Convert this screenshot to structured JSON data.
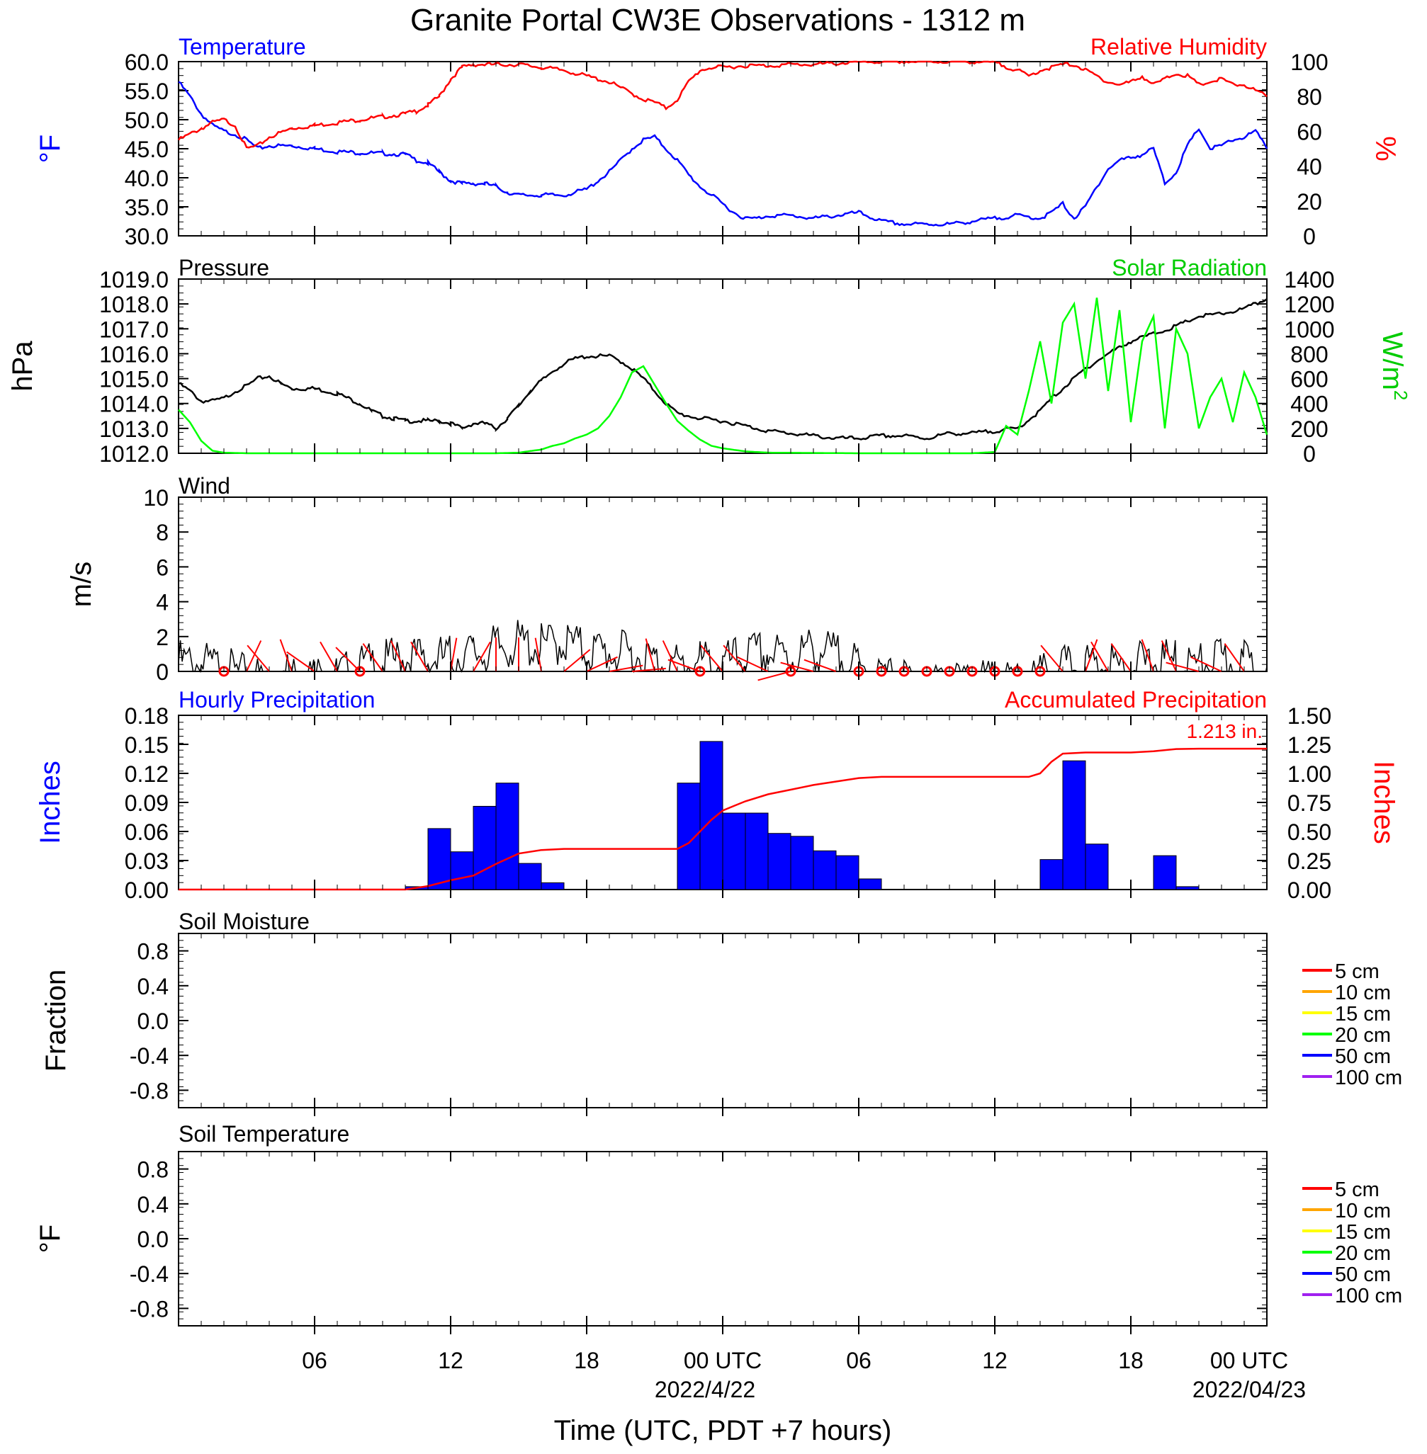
{
  "figure": {
    "title": "Granite Portal CW3E Observations - 1312 m",
    "xlabel": "Time (UTC, PDT +7 hours)",
    "xticks": [
      "06",
      "12",
      "18",
      "00 UTC",
      "06",
      "12",
      "18",
      "00 UTC"
    ],
    "date_labels": [
      "2022/4/22",
      "2022/04/23"
    ],
    "colors": {
      "temperature": "#0000ff",
      "humidity": "#ff0000",
      "pressure": "#000000",
      "solar": "#00ff00",
      "wind": "#000000",
      "barb": "#ff0000",
      "hourly": "#0000ff",
      "accum": "#ff0000"
    }
  },
  "chart_data": [
    {
      "id": "temp_rh",
      "type": "line",
      "left_title": "Temperature",
      "right_title": "Relative Humidity",
      "left_axis": {
        "label": "°F",
        "ticks": [
          "30.0",
          "35.0",
          "40.0",
          "45.0",
          "50.0",
          "55.0",
          "60.0"
        ],
        "range": [
          30,
          60
        ]
      },
      "right_axis": {
        "label": "%",
        "ticks": [
          "0",
          "20",
          "40",
          "60",
          "80",
          "100"
        ],
        "range": [
          0,
          100
        ]
      },
      "x_range_hours": [
        0,
        48
      ],
      "series": [
        {
          "name": "Temperature",
          "axis": "left",
          "x": [
            0,
            0.5,
            1,
            1.5,
            2,
            2.5,
            3,
            3.5,
            4,
            5,
            6,
            7,
            8,
            9,
            10,
            10.5,
            11,
            11.5,
            12,
            12.5,
            13,
            13.5,
            14,
            14.5,
            15,
            16,
            17,
            18,
            18.5,
            19,
            19.5,
            20,
            20.5,
            21,
            21.5,
            22,
            22.5,
            23,
            23.5,
            24,
            24.5,
            25,
            25.5,
            26,
            27,
            28,
            29,
            30,
            31,
            32,
            33,
            34,
            35,
            36,
            37,
            38,
            38.5,
            39,
            39.5,
            40,
            40.5,
            41,
            41.5,
            42,
            42.5,
            43,
            43.5,
            44,
            44.5,
            45,
            45.5,
            46,
            46.5,
            47,
            47.5,
            48
          ],
          "y": [
            56.5,
            54.0,
            51.0,
            49.0,
            48.0,
            47.5,
            46.5,
            45.0,
            45.5,
            45.5,
            45.0,
            44.5,
            44.3,
            44.2,
            44.0,
            43.0,
            42.5,
            41.0,
            39.5,
            39.0,
            39.0,
            39.0,
            38.5,
            37.5,
            37.0,
            37.0,
            37.0,
            38.0,
            39.5,
            41.0,
            43.0,
            45.0,
            46.5,
            47.0,
            45.0,
            43.0,
            40.5,
            38.5,
            37.0,
            35.5,
            34.0,
            33.0,
            33.0,
            33.5,
            33.5,
            33.0,
            33.5,
            34.0,
            32.5,
            32.0,
            32.0,
            32.0,
            32.5,
            33.0,
            33.5,
            33.0,
            34.0,
            35.5,
            33.0,
            35.0,
            38.5,
            41.5,
            43.0,
            43.5,
            44.0,
            45.0,
            39.0,
            41.0,
            45.5,
            48.5,
            45.0,
            45.5,
            46.5,
            47.0,
            48.0,
            45.0
          ]
        },
        {
          "name": "Relative Humidity",
          "axis": "left",
          "x": [
            0,
            0.5,
            1,
            1.5,
            2,
            2.5,
            3,
            3.5,
            4,
            5,
            6,
            7,
            8,
            9,
            10,
            10.5,
            11,
            11.5,
            12,
            12.5,
            13,
            14,
            15,
            16,
            17,
            17.5,
            18,
            19,
            19.5,
            20,
            20.5,
            21,
            21.5,
            22,
            22.5,
            23,
            23.5,
            24,
            25,
            26,
            27,
            28,
            29,
            30,
            31,
            32,
            33,
            34,
            35,
            36,
            37,
            37.5,
            38,
            38.5,
            39,
            39.5,
            40,
            40.5,
            41,
            41.5,
            42,
            42.5,
            43,
            43.5,
            44,
            44.5,
            45,
            45.5,
            46,
            46.5,
            47,
            47.5,
            48
          ],
          "y": [
            46.5,
            47.5,
            48.5,
            49.5,
            50.0,
            49.0,
            45.0,
            45.5,
            47.0,
            48.5,
            49.0,
            49.5,
            50.0,
            50.5,
            51.0,
            51.5,
            52.5,
            54.0,
            57.0,
            59.0,
            59.5,
            59.5,
            59.5,
            59.0,
            58.5,
            58.0,
            57.5,
            56.5,
            55.5,
            54.5,
            53.5,
            53.0,
            52.0,
            53.5,
            56.5,
            58.5,
            59.0,
            59.0,
            59.3,
            59.3,
            59.5,
            59.5,
            59.7,
            59.9,
            60.0,
            60.0,
            60.0,
            60.0,
            60.0,
            59.8,
            58.5,
            57.5,
            58.5,
            59.0,
            59.5,
            59.5,
            58.5,
            57.5,
            56.5,
            56.0,
            56.5,
            57.5,
            56.0,
            57.0,
            58.0,
            57.5,
            56.0,
            56.5,
            57.0,
            56.0,
            56.0,
            55.0,
            54.0
          ]
        }
      ]
    },
    {
      "id": "pressure_solar",
      "type": "line",
      "left_title": "Pressure",
      "right_title": "Solar Radiation",
      "left_axis": {
        "label": "hPa",
        "ticks": [
          "1012.0",
          "1013.0",
          "1014.0",
          "1015.0",
          "1016.0",
          "1017.0",
          "1018.0",
          "1019.0"
        ],
        "range": [
          1012,
          1019
        ]
      },
      "right_axis": {
        "label": "W/m",
        "label_sup": "2",
        "ticks": [
          "0",
          "200",
          "400",
          "600",
          "800",
          "1000",
          "1200",
          "1400"
        ],
        "range": [
          0,
          1400
        ]
      },
      "series": [
        {
          "name": "Pressure",
          "axis": "left",
          "x": [
            0,
            0.5,
            1,
            1.5,
            2,
            2.5,
            3,
            3.5,
            4,
            4.5,
            5,
            6,
            7,
            8,
            8.5,
            9,
            9.5,
            10,
            10.5,
            11,
            11.5,
            12,
            12.5,
            13,
            13.5,
            14,
            14.5,
            15,
            15.5,
            16,
            16.5,
            17,
            17.5,
            18,
            18.5,
            19,
            19.5,
            20,
            20.5,
            21,
            21.5,
            22,
            23,
            24,
            25,
            26,
            27,
            28,
            29,
            30,
            31,
            32,
            33,
            34,
            35,
            36,
            37,
            38,
            38.5,
            39,
            39.5,
            40,
            40.5,
            41,
            42,
            43,
            44,
            45,
            46,
            47,
            47.5,
            48
          ],
          "y": [
            1014.8,
            1014.5,
            1014.1,
            1014.1,
            1014.2,
            1014.5,
            1014.7,
            1015.0,
            1015.1,
            1014.8,
            1014.6,
            1014.6,
            1014.4,
            1014.0,
            1013.7,
            1013.5,
            1013.4,
            1013.3,
            1013.3,
            1013.3,
            1013.3,
            1013.2,
            1013.0,
            1013.2,
            1013.2,
            1013.0,
            1013.4,
            1013.9,
            1014.5,
            1014.9,
            1015.3,
            1015.6,
            1015.8,
            1015.9,
            1015.9,
            1015.9,
            1015.7,
            1015.4,
            1015.0,
            1014.5,
            1014.0,
            1013.6,
            1013.4,
            1013.3,
            1013.1,
            1012.9,
            1012.8,
            1012.7,
            1012.6,
            1012.6,
            1012.7,
            1012.7,
            1012.6,
            1012.8,
            1012.8,
            1012.9,
            1013.0,
            1013.7,
            1014.2,
            1014.6,
            1015.0,
            1015.4,
            1015.7,
            1016.0,
            1016.5,
            1016.8,
            1017.1,
            1017.5,
            1017.6,
            1017.8,
            1018.0,
            1018.2
          ]
        },
        {
          "name": "Solar Radiation",
          "axis": "right",
          "x": [
            0,
            0.5,
            1,
            1.5,
            2,
            3,
            4,
            8,
            12,
            14,
            15,
            16,
            16.5,
            17,
            17.5,
            18,
            18.5,
            19,
            19.5,
            20,
            20.5,
            21,
            21.5,
            22,
            22.5,
            23,
            23.5,
            24,
            25,
            26,
            30,
            35,
            36,
            36.5,
            37,
            37.5,
            38,
            38.5,
            39,
            39.5,
            40,
            40.5,
            41,
            41.5,
            42,
            42.5,
            43,
            43.5,
            44,
            44.5,
            45,
            45.5,
            46,
            46.5,
            47,
            47.5,
            48
          ],
          "y": [
            350,
            250,
            100,
            20,
            5,
            0,
            0,
            0,
            0,
            0,
            5,
            30,
            60,
            80,
            120,
            150,
            200,
            300,
            450,
            650,
            700,
            550,
            400,
            260,
            180,
            110,
            60,
            40,
            15,
            5,
            0,
            0,
            10,
            220,
            150,
            500,
            900,
            400,
            1050,
            1200,
            600,
            1250,
            500,
            1150,
            250,
            900,
            1100,
            200,
            1000,
            800,
            200,
            450,
            600,
            250,
            650,
            450,
            150
          ]
        }
      ]
    },
    {
      "id": "wind",
      "type": "line",
      "left_title": "Wind",
      "left_axis": {
        "label": "m/s",
        "ticks": [
          "0",
          "2",
          "4",
          "6",
          "8",
          "10"
        ],
        "range": [
          0,
          10
        ]
      },
      "series": [
        {
          "name": "Wind",
          "x": [
            0,
            1,
            2,
            3,
            4,
            5,
            6,
            7,
            8,
            9,
            10,
            11,
            12,
            13,
            14,
            15,
            16,
            17,
            18,
            19,
            20,
            21,
            22,
            23,
            24,
            25,
            26,
            27,
            28,
            29,
            30,
            31,
            32,
            33,
            34,
            35,
            36,
            37,
            38,
            39,
            40,
            41,
            42,
            43,
            44,
            45,
            46,
            47,
            48
          ],
          "y": [
            1.2,
            1.1,
            0.8,
            0.3,
            0.3,
            0.6,
            0.4,
            0.3,
            0.9,
            1.1,
            1.5,
            1.3,
            1.5,
            1.7,
            2.0,
            2.3,
            2.1,
            2.4,
            1.9,
            1.8,
            1.6,
            1.3,
            1.0,
            1.2,
            1.0,
            1.6,
            1.7,
            1.5,
            2.0,
            1.6,
            0.8,
            0.3,
            0.1,
            0.0,
            0.0,
            0.0,
            0.0,
            0.0,
            0.3,
            0.8,
            1.0,
            0.9,
            1.0,
            1.1,
            1.2,
            1.0,
            1.3,
            1.2,
            1.0
          ]
        }
      ],
      "calm_hours": [
        2,
        8,
        23,
        27,
        30,
        31,
        32,
        33,
        34,
        35,
        36,
        37,
        38
      ],
      "barb_hours": [
        3,
        4,
        5,
        6,
        7,
        8,
        9,
        10,
        11,
        12,
        13,
        14,
        15,
        16,
        17,
        18,
        19,
        20,
        21,
        22,
        23,
        24,
        25,
        26,
        27,
        28,
        29,
        39,
        40,
        41,
        42,
        43,
        44,
        45,
        46,
        47
      ],
      "barb_angles": [
        155,
        220,
        200,
        235,
        210,
        225,
        215,
        205,
        210,
        170,
        150,
        180,
        180,
        190,
        130,
        115,
        100,
        95,
        195,
        205,
        250,
        220,
        220,
        245,
        285,
        255,
        250,
        220,
        160,
        210,
        215,
        200,
        205,
        255,
        245,
        215
      ]
    },
    {
      "id": "precip",
      "type": "bar",
      "left_title": "Hourly Precipitation",
      "right_title": "Accumulated Precipitation",
      "total_label": "1.213 in.",
      "left_axis": {
        "label": "Inches",
        "ticks": [
          "0.00",
          "0.03",
          "0.06",
          "0.09",
          "0.12",
          "0.15",
          "0.18"
        ],
        "range": [
          0,
          0.18
        ]
      },
      "right_axis": {
        "label": "Inches",
        "ticks": [
          "0.00",
          "0.25",
          "0.50",
          "0.75",
          "1.00",
          "1.25",
          "1.50"
        ],
        "range": [
          0,
          1.5
        ]
      },
      "hourly": [
        0,
        0,
        0,
        0,
        0,
        0,
        0,
        0,
        0,
        0,
        0.003,
        0.063,
        0.039,
        0.086,
        0.11,
        0.027,
        0.007,
        0,
        0,
        0,
        0,
        0,
        0.11,
        0.153,
        0.079,
        0.079,
        0.058,
        0.055,
        0.04,
        0.035,
        0.011,
        0,
        0,
        0,
        0,
        0,
        0,
        0,
        0.031,
        0.133,
        0.047,
        0,
        0,
        0.035,
        0.003,
        0,
        0,
        0
      ],
      "accum": {
        "x": [
          0,
          10,
          11,
          12,
          13,
          14,
          15,
          16,
          17,
          18,
          20,
          22,
          22.5,
          23,
          23.5,
          24,
          24.5,
          25,
          26,
          27,
          28,
          29,
          30,
          31,
          35,
          37.5,
          38,
          38.5,
          39,
          40,
          42,
          43,
          44,
          45,
          46,
          47,
          48
        ],
        "y": [
          0,
          0,
          0.03,
          0.08,
          0.12,
          0.22,
          0.31,
          0.34,
          0.35,
          0.35,
          0.35,
          0.35,
          0.4,
          0.5,
          0.6,
          0.68,
          0.72,
          0.76,
          0.82,
          0.86,
          0.9,
          0.93,
          0.96,
          0.97,
          0.97,
          0.97,
          1.0,
          1.1,
          1.17,
          1.18,
          1.18,
          1.19,
          1.21,
          1.213,
          1.213,
          1.213,
          1.213
        ]
      }
    },
    {
      "id": "soil_moisture",
      "type": "line",
      "left_title": "Soil Moisture",
      "left_axis": {
        "label": "Fraction",
        "ticks": [
          "-0.8",
          "-0.4",
          "0.0",
          "0.4",
          "0.8"
        ],
        "range": [
          -1,
          1
        ]
      },
      "legend": [
        {
          "label": "5 cm",
          "color": "#ff0000"
        },
        {
          "label": "10 cm",
          "color": "#ffa500"
        },
        {
          "label": "15 cm",
          "color": "#ffff00"
        },
        {
          "label": "20 cm",
          "color": "#00ff00"
        },
        {
          "label": "50 cm",
          "color": "#0000ff"
        },
        {
          "label": "100 cm",
          "color": "#a020f0"
        }
      ]
    },
    {
      "id": "soil_temp",
      "type": "line",
      "left_title": "Soil Temperature",
      "left_axis": {
        "label": "°F",
        "ticks": [
          "-0.8",
          "-0.4",
          "0.0",
          "0.4",
          "0.8"
        ],
        "range": [
          -1,
          1
        ]
      },
      "legend": [
        {
          "label": "5 cm",
          "color": "#ff0000"
        },
        {
          "label": "10 cm",
          "color": "#ffa500"
        },
        {
          "label": "15 cm",
          "color": "#ffff00"
        },
        {
          "label": "20 cm",
          "color": "#00ff00"
        },
        {
          "label": "50 cm",
          "color": "#0000ff"
        },
        {
          "label": "100 cm",
          "color": "#a020f0"
        }
      ]
    }
  ]
}
